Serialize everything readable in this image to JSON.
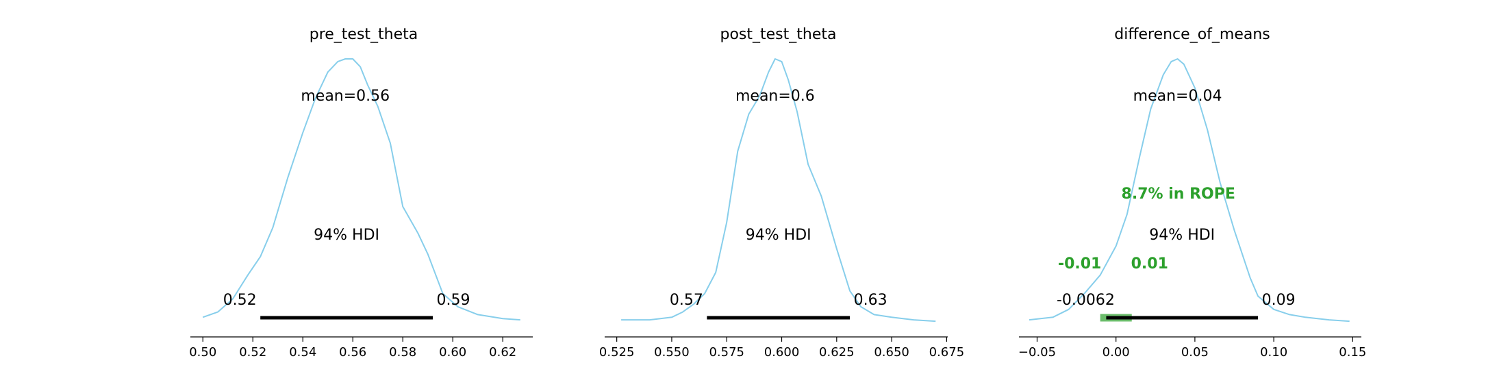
{
  "chart_data": [
    {
      "type": "area",
      "title": "pre_test_theta",
      "mean_label": "mean=0.56",
      "hdi_label": "94% HDI",
      "hdi": [
        0.523,
        0.592
      ],
      "hdi_tick_labels": [
        "0.52",
        "0.59"
      ],
      "xlim": [
        0.495,
        0.632
      ],
      "xticks": [
        0.5,
        0.52,
        0.54,
        0.56,
        0.58,
        0.6,
        0.62
      ],
      "xtick_labels": [
        "0.50",
        "0.52",
        "0.54",
        "0.56",
        "0.58",
        "0.60",
        "0.62"
      ],
      "density_x": [
        0.5,
        0.506,
        0.512,
        0.518,
        0.523,
        0.528,
        0.534,
        0.54,
        0.545,
        0.55,
        0.554,
        0.557,
        0.56,
        0.563,
        0.566,
        0.57,
        0.575,
        0.58,
        0.586,
        0.59,
        0.596,
        0.602,
        0.61,
        0.62,
        0.627
      ],
      "density_y": [
        0.02,
        0.04,
        0.09,
        0.18,
        0.25,
        0.36,
        0.55,
        0.72,
        0.85,
        0.95,
        0.99,
        1.0,
        1.0,
        0.97,
        0.9,
        0.82,
        0.68,
        0.44,
        0.34,
        0.26,
        0.11,
        0.06,
        0.03,
        0.015,
        0.01
      ],
      "color": "#87ceeb",
      "hdi_color": "#000000"
    },
    {
      "type": "area",
      "title": "post_test_theta",
      "mean_label": "mean=0.6",
      "hdi_label": "94% HDI",
      "hdi": [
        0.566,
        0.631
      ],
      "hdi_tick_labels": [
        "0.57",
        "0.63"
      ],
      "xlim": [
        0.5195,
        0.6755
      ],
      "xticks": [
        0.525,
        0.55,
        0.575,
        0.6,
        0.625,
        0.65,
        0.675
      ],
      "xtick_labels": [
        "0.525",
        "0.550",
        "0.575",
        "0.600",
        "0.625",
        "0.650",
        "0.675"
      ],
      "density_x": [
        0.527,
        0.54,
        0.55,
        0.555,
        0.56,
        0.565,
        0.57,
        0.575,
        0.58,
        0.585,
        0.59,
        0.594,
        0.597,
        0.6,
        0.603,
        0.607,
        0.612,
        0.618,
        0.625,
        0.631,
        0.636,
        0.642,
        0.65,
        0.66,
        0.67
      ],
      "density_y": [
        0.01,
        0.01,
        0.02,
        0.04,
        0.07,
        0.11,
        0.19,
        0.38,
        0.65,
        0.79,
        0.86,
        0.95,
        1.0,
        0.99,
        0.92,
        0.8,
        0.6,
        0.48,
        0.28,
        0.12,
        0.06,
        0.03,
        0.02,
        0.01,
        0.005
      ],
      "color": "#87ceeb",
      "hdi_color": "#000000"
    },
    {
      "type": "area",
      "title": "difference_of_means",
      "mean_label": "mean=0.04",
      "hdi_label": "94% HDI",
      "hdi": [
        -0.0062,
        0.09
      ],
      "hdi_tick_labels": [
        "-0.0062",
        "0.09"
      ],
      "rope": [
        -0.01,
        0.01
      ],
      "rope_labels": [
        "-0.01",
        "0.01"
      ],
      "rope_text": "8.7% in ROPE",
      "rope_color": "#2ca02c",
      "xlim": [
        -0.0615,
        0.1555
      ],
      "xticks": [
        -0.05,
        0.0,
        0.05,
        0.1,
        0.15
      ],
      "xtick_labels": [
        "−0.05",
        "0.00",
        "0.05",
        "0.10",
        "0.15"
      ],
      "density_x": [
        -0.055,
        -0.04,
        -0.03,
        -0.02,
        -0.01,
        0.0,
        0.007,
        0.015,
        0.022,
        0.03,
        0.035,
        0.039,
        0.043,
        0.05,
        0.058,
        0.066,
        0.075,
        0.085,
        0.09,
        0.1,
        0.11,
        0.12,
        0.135,
        0.148
      ],
      "density_y": [
        0.01,
        0.02,
        0.05,
        0.11,
        0.18,
        0.29,
        0.41,
        0.63,
        0.81,
        0.94,
        0.99,
        1.0,
        0.98,
        0.89,
        0.73,
        0.53,
        0.35,
        0.17,
        0.1,
        0.05,
        0.03,
        0.02,
        0.01,
        0.005
      ],
      "color": "#87ceeb",
      "hdi_color": "#000000"
    }
  ]
}
